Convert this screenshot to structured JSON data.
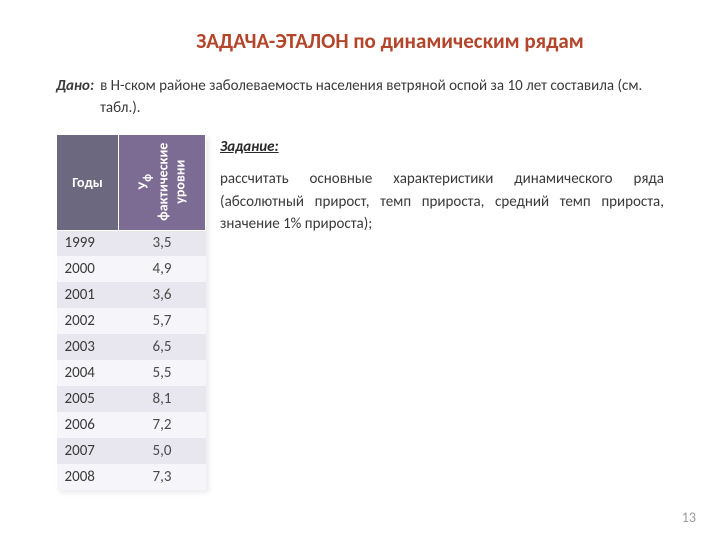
{
  "colors": {
    "title": "#b2452a",
    "header_year_bg": "#6b6880",
    "header_val_bg": "#7c6b92",
    "row_even_bg": "#e8e6ee",
    "row_odd_bg": "#f6f5f9",
    "text": "#3a3a3a",
    "val_text": "#4a4a4a",
    "pagenum": "#9a9a9a",
    "task_label": "#2a2a2a"
  },
  "title": "ЗАДАЧА-ЭТАЛОН  по  динамическим  рядам",
  "given": {
    "label": "Дано:",
    "text": "в Н-ском районе заболеваемость населения ветряной оспой за 10 лет составила (см. табл.)."
  },
  "task": {
    "label": "Задание:",
    "text": "рассчитать основные характеристики динамического ряда   (абсолютный прирост,  темп прироста,  средний темп прироста,   значение 1% прироста);"
  },
  "table": {
    "col_year": "Годы",
    "col_val_line1": "У",
    "col_val_sub": "ф",
    "col_val_line2": "фактические",
    "col_val_line3": "уровни",
    "rows": [
      {
        "year": "1999",
        "val": "3,5"
      },
      {
        "year": "2000",
        "val": "4,9"
      },
      {
        "year": "2001",
        "val": "3,6"
      },
      {
        "year": "2002",
        "val": "5,7"
      },
      {
        "year": "2003",
        "val": "6,5"
      },
      {
        "year": "2004",
        "val": "5,5"
      },
      {
        "year": "2005",
        "val": "8,1"
      },
      {
        "year": "2006",
        "val": "7,2"
      },
      {
        "year": "2007",
        "val": "5,0"
      },
      {
        "year": "2008",
        "val": "7,3"
      }
    ]
  },
  "pagenum": "13"
}
